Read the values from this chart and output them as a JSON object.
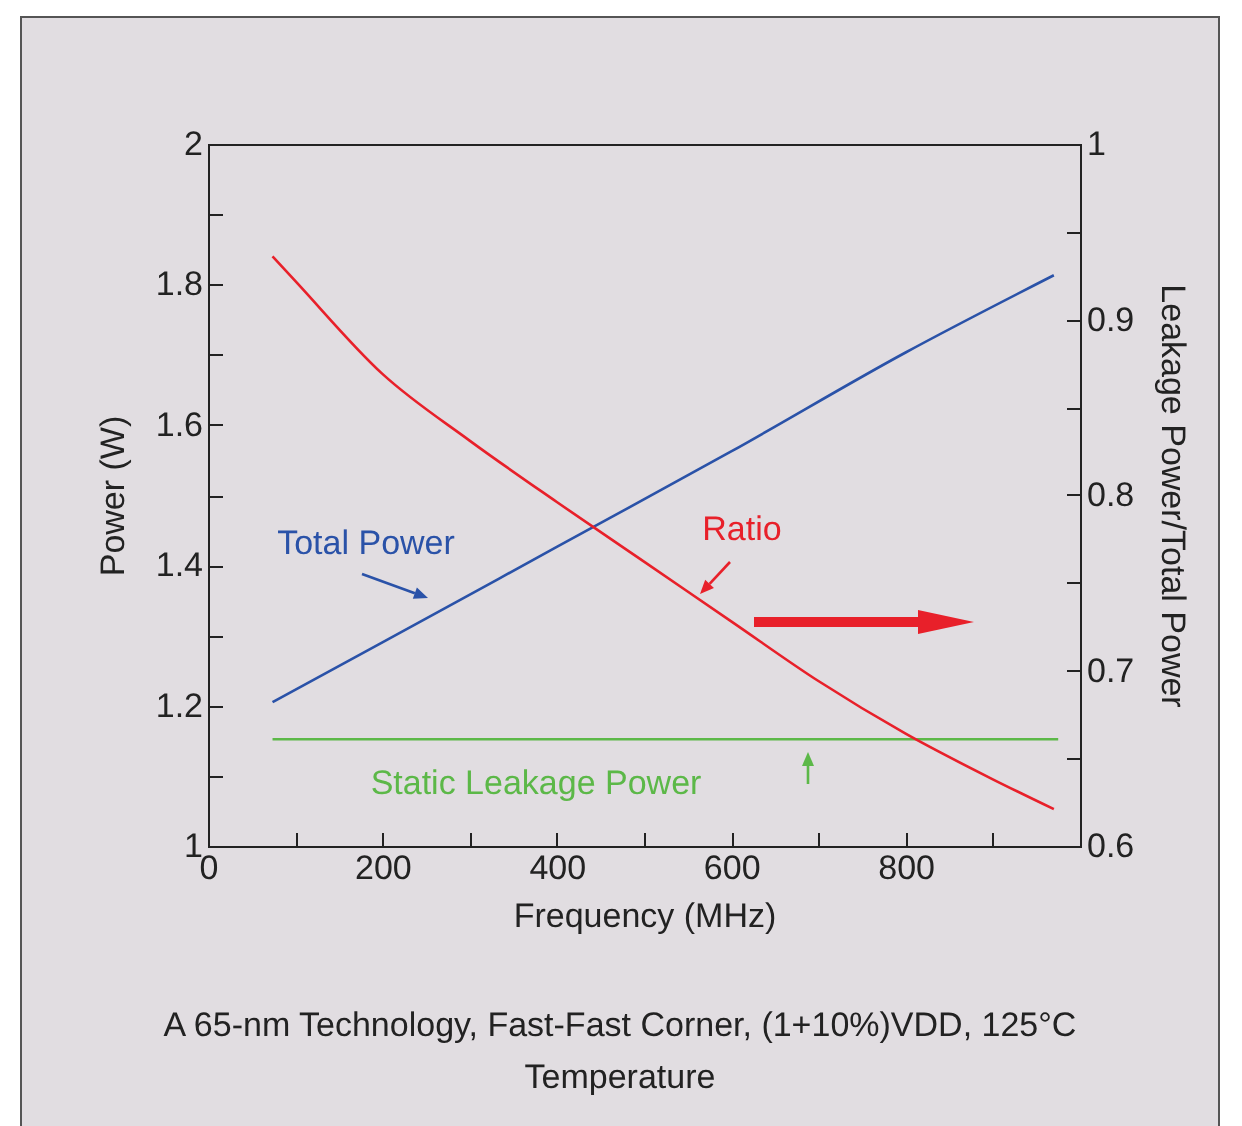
{
  "chart_data": {
    "type": "line",
    "xlabel": "Frequency (MHz)",
    "ylabel": "Power (W)",
    "y2label": "Leakage Power/Total Power",
    "xlim": [
      0,
      1000
    ],
    "xticks": [
      0,
      {
        "value": 100,
        "label": null
      },
      200,
      {
        "value": 300,
        "label": null
      },
      400,
      {
        "value": 500,
        "label": null
      },
      600,
      {
        "value": 700,
        "label": null
      },
      800,
      {
        "value": 900,
        "label": null
      }
    ],
    "ylim": [
      1,
      2
    ],
    "yticks": [
      1,
      {
        "value": 1.1,
        "label": null
      },
      1.2,
      {
        "value": 1.3,
        "label": null
      },
      1.4,
      {
        "value": 1.5,
        "label": null
      },
      1.6,
      {
        "value": 1.7,
        "label": null
      },
      1.8,
      {
        "value": 1.9,
        "label": null
      },
      2
    ],
    "y2lim": [
      0.6,
      1
    ],
    "y2ticks": [
      0.6,
      {
        "value": 0.65,
        "label": null
      },
      0.7,
      {
        "value": 0.75,
        "label": null
      },
      0.8,
      {
        "value": 0.85,
        "label": null
      },
      0.9,
      {
        "value": 0.95,
        "label": null
      },
      1
    ],
    "grid": false,
    "legend": false,
    "marker": "none",
    "line_style": "solid",
    "series": [
      {
        "name": "Total Power",
        "color": "#2a52a8",
        "x": [
          74,
          200,
          400,
          600,
          800,
          970
        ],
        "values": [
          1.205,
          1.29,
          1.426,
          1.562,
          1.703,
          1.813
        ]
      },
      {
        "name": "Ratio",
        "color": "#e8202a",
        "axis": "y2",
        "x": [
          74,
          100,
          200,
          300,
          400,
          500,
          600,
          700,
          800,
          900,
          970
        ],
        "values": [
          0.936,
          0.922,
          0.869,
          0.831,
          0.796,
          0.762,
          0.728,
          0.694,
          0.664,
          0.638,
          0.621
        ]
      },
      {
        "name": "Static Leakage Power",
        "color": "#5cb848",
        "x": [
          74,
          975
        ],
        "values": [
          1.152,
          1.152
        ]
      }
    ],
    "annotations": [
      "A 65-nm Technology, Fast-Fast Corner, (1+10%)VDD, 125°C Temperature"
    ]
  }
}
